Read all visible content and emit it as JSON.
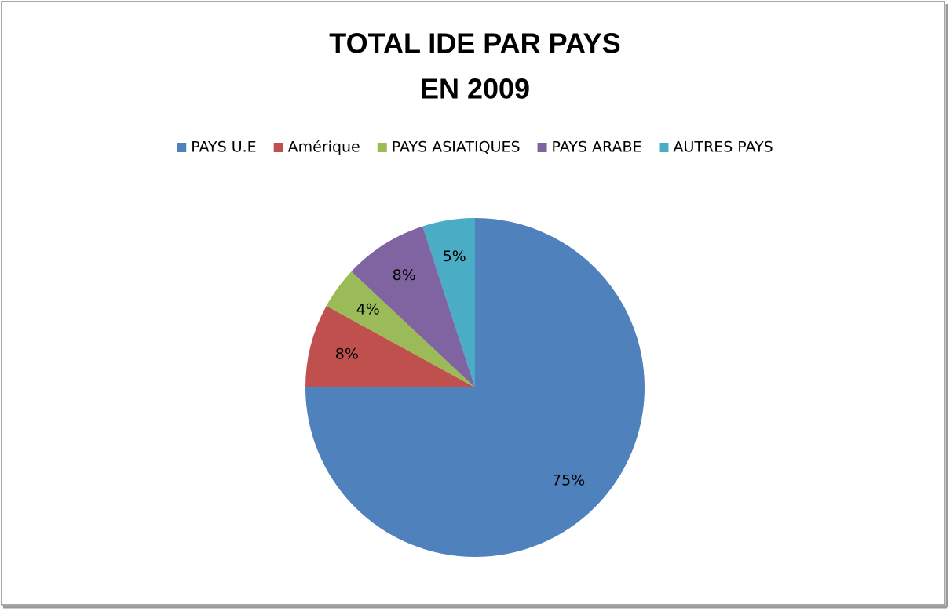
{
  "chart_data": {
    "type": "pie",
    "title": [
      "TOTAL IDE PAR PAYS",
      "EN 2009"
    ],
    "categories": [
      "PAYS U.E",
      "Amérique",
      "PAYS ASIATIQUES",
      "PAYS ARABE",
      "AUTRES PAYS"
    ],
    "values": [
      75,
      8,
      4,
      8,
      5
    ],
    "value_labels": [
      "75%",
      "8%",
      "4%",
      "8%",
      "5%"
    ],
    "colors": [
      "#4f81bd",
      "#c0504d",
      "#9bbb59",
      "#8064a2",
      "#4bacc6"
    ],
    "legend": "top"
  }
}
